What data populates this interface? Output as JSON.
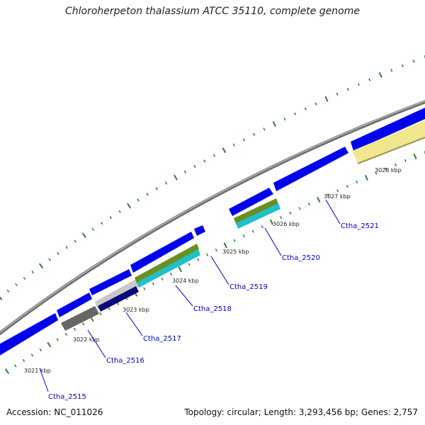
{
  "title": "Chloroherpeton thalassium ATCC 35110, complete genome",
  "accession": "Accession: NC_011026",
  "topology": "Topology: circular; Length: 3,293,456 bp; Genes: 2,757",
  "colors": {
    "backbone": "#8a8a8a",
    "forward_gene": "#0000ee",
    "tick": "#2e7d32",
    "label_line": "#0000cc"
  },
  "kbp_labels": [
    "3021 kbp",
    "3022 kbp",
    "3023 kbp",
    "3024 kbp",
    "3025 kbp",
    "3026 kbp",
    "3027 kbp",
    "3028 kbp"
  ],
  "genes": [
    {
      "label": "Ctha_2515"
    },
    {
      "label": "Ctha_2516"
    },
    {
      "label": "Ctha_2517"
    },
    {
      "label": "Ctha_2518"
    },
    {
      "label": "Ctha_2519"
    },
    {
      "label": "Ctha_2520"
    },
    {
      "label": "Ctha_2521"
    }
  ]
}
